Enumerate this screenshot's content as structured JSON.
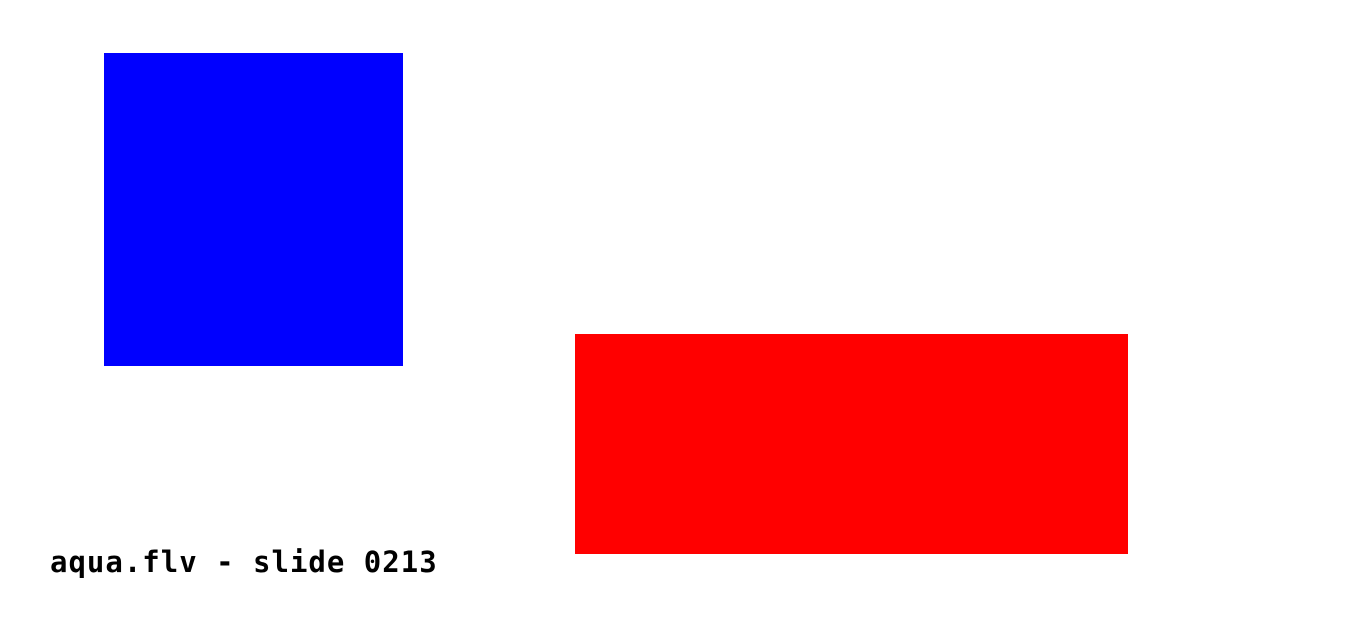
{
  "slide": {
    "caption": "aqua.flv - slide 0213",
    "shapes": [
      {
        "name": "blue-rectangle",
        "color": "#0000ff"
      },
      {
        "name": "red-rectangle",
        "color": "#ff0000"
      }
    ],
    "background": "#ffffff",
    "text_color": "#000000"
  }
}
